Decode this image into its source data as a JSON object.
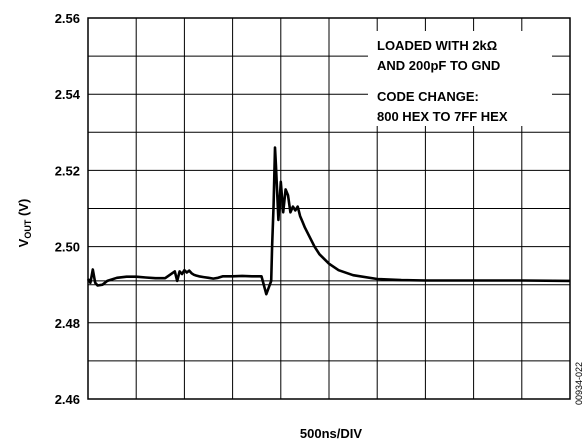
{
  "chart_data": {
    "type": "line",
    "title": "",
    "xlabel": "500ns/DIV",
    "ylabel_main": "V",
    "ylabel_sub": "OUT",
    "ylabel_unit": " (V)",
    "ylim": [
      2.46,
      2.56
    ],
    "xlim": [
      0,
      10
    ],
    "x_divisions": 10,
    "y_divisions": 10,
    "y_ticks": [
      2.46,
      2.48,
      2.5,
      2.52,
      2.54,
      2.56
    ],
    "y_tick_labels": [
      "2.46",
      "2.48",
      "2.50",
      "2.52",
      "2.54",
      "2.56"
    ],
    "grid": true,
    "annotations": [
      "LOADED WITH 2kΩ",
      "AND 200pF TO GND",
      "CODE CHANGE:",
      "800 HEX TO 7FF HEX"
    ],
    "figure_id": "00934-022",
    "series": [
      {
        "color": "#000000",
        "x": [
          0,
          0.05,
          0.1,
          0.15,
          0.2,
          0.3,
          0.4,
          0.6,
          0.8,
          1.0,
          1.2,
          1.4,
          1.6,
          1.8,
          1.85,
          1.9,
          1.95,
          2.0,
          2.05,
          2.1,
          2.15,
          2.2,
          2.25,
          2.3,
          2.4,
          2.5,
          2.6,
          2.7,
          2.8,
          3.0,
          3.2,
          3.4,
          3.6,
          3.7,
          3.8,
          3.82,
          3.85,
          3.88,
          3.9,
          3.95,
          4.0,
          4.05,
          4.1,
          4.15,
          4.2,
          4.25,
          4.3,
          4.35,
          4.4,
          4.45,
          4.5,
          4.6,
          4.7,
          4.8,
          5.0,
          5.2,
          5.5,
          6.0,
          6.5,
          7.0,
          7.5,
          8.0,
          9.0,
          10.0
        ],
        "y": [
          2.4915,
          2.4905,
          2.494,
          2.4905,
          2.4898,
          2.49,
          2.491,
          2.4918,
          2.4921,
          2.4921,
          2.4919,
          2.4917,
          2.4917,
          2.4935,
          2.491,
          2.4935,
          2.4928,
          2.4938,
          2.4932,
          2.4937,
          2.493,
          2.4926,
          2.4924,
          2.4922,
          2.492,
          2.4918,
          2.4916,
          2.4918,
          2.4922,
          2.4922,
          2.4923,
          2.4922,
          2.4922,
          2.4875,
          2.491,
          2.5,
          2.511,
          2.526,
          2.521,
          2.507,
          2.517,
          2.509,
          2.515,
          2.5135,
          2.509,
          2.5105,
          2.5095,
          2.5105,
          2.508,
          2.5065,
          2.505,
          2.5025,
          2.5,
          2.498,
          2.4955,
          2.4938,
          2.4925,
          2.4915,
          2.4912,
          2.4911,
          2.4911,
          2.4911,
          2.4911,
          2.491
        ]
      }
    ]
  }
}
